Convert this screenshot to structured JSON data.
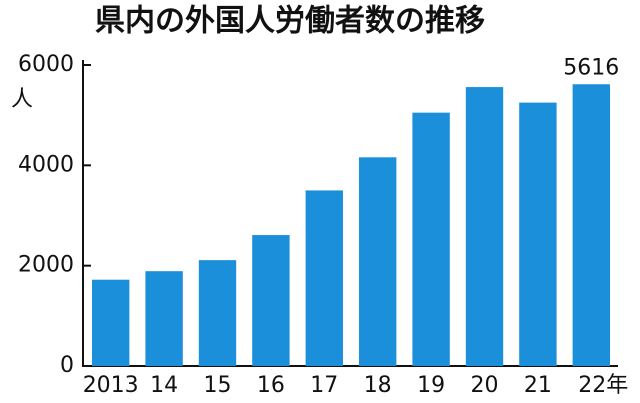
{
  "chart_data": {
    "type": "bar",
    "title": "県内の外国人労働者数の推移",
    "y_unit": "人",
    "categories": [
      "2013",
      "14",
      "15",
      "16",
      "17",
      "18",
      "19",
      "20",
      "21",
      "22年"
    ],
    "values": [
      1720,
      1890,
      2110,
      2610,
      3500,
      4160,
      5050,
      5560,
      5250,
      5616
    ],
    "value_labels": [
      null,
      null,
      null,
      null,
      null,
      null,
      null,
      null,
      null,
      "5616"
    ],
    "color": "#1b8fd9",
    "ylim": [
      0,
      6000
    ],
    "yticks": [
      0,
      2000,
      4000,
      6000
    ],
    "grid": false
  }
}
